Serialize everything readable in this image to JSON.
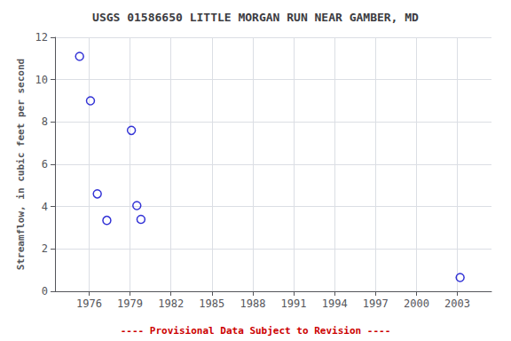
{
  "chart_data": {
    "type": "scatter",
    "title": "USGS 01586650 LITTLE MORGAN RUN NEAR GAMBER, MD",
    "ylabel": "Streamflow, in cubic feet per second",
    "annotations": [
      {
        "text": "---- Provisional Data Subject to Revision ----",
        "color": "#CC0000"
      }
    ],
    "x": [
      1975.3,
      1976.1,
      1976.6,
      1977.3,
      1979.1,
      1979.5,
      1979.8,
      2003.2
    ],
    "values": [
      11.1,
      9.0,
      4.6,
      3.35,
      7.6,
      4.05,
      3.4,
      0.65
    ],
    "xlim": [
      1973.5,
      2005.5
    ],
    "ylim": [
      0,
      12
    ],
    "xticks": [
      1976,
      1979,
      1982,
      1985,
      1988,
      1991,
      1994,
      1997,
      2000,
      2003
    ],
    "yticks": [
      0,
      2,
      4,
      6,
      8,
      10,
      12
    ],
    "color": "#0000CC",
    "marker": "circle",
    "grid": true
  }
}
